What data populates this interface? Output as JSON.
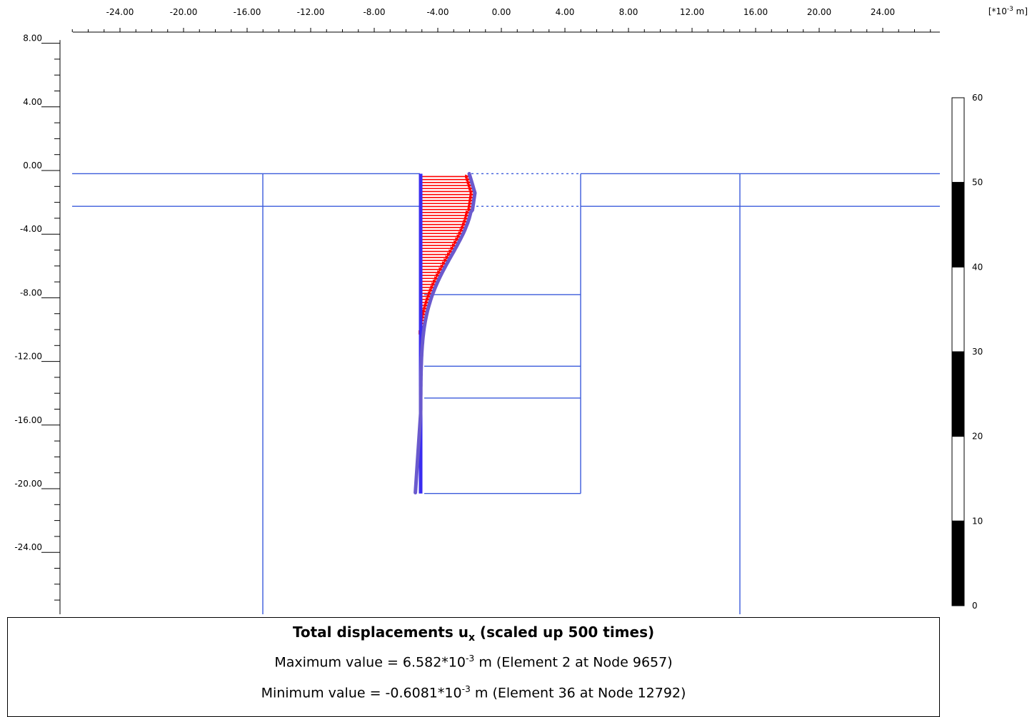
{
  "unit_label": {
    "prefix": "[*10",
    "exponent": "-3",
    "suffix": " m]"
  },
  "x_axis": {
    "ticks": [
      "-24.00",
      "-20.00",
      "-16.00",
      "-12.00",
      "-8.00",
      "-4.00",
      "0.00",
      "4.00",
      "8.00",
      "12.00",
      "16.00",
      "20.00",
      "24.00"
    ],
    "values": [
      -24,
      -20,
      -16,
      -12,
      -8,
      -4,
      0,
      4,
      8,
      12,
      16,
      20,
      24
    ],
    "range": [
      -27,
      28
    ]
  },
  "y_axis": {
    "ticks": [
      "8.00",
      "4.00",
      "0.00",
      "-4.00",
      "-8.00",
      "-12.00",
      "-16.00",
      "-20.00",
      "-24.00"
    ],
    "values": [
      8,
      4,
      0,
      -4,
      -8,
      -12,
      -16,
      -20,
      -24
    ],
    "range": [
      -28,
      9
    ]
  },
  "legend_scale": {
    "labels": [
      "60",
      "50",
      "40",
      "30",
      "20",
      "10",
      "0"
    ],
    "values": [
      60,
      50,
      40,
      30,
      20,
      10,
      0
    ],
    "band_colors": [
      "#ffffff",
      "#000000",
      "#ffffff",
      "#000000",
      "#ffffff",
      "#000000"
    ]
  },
  "colors": {
    "geometry": "#3b5bdb",
    "arrows": "#ff0000",
    "wall": "#3a2cf0",
    "deformed": "#6a5acd"
  },
  "info": {
    "title_main": "Total displacements u",
    "title_sub": "x",
    "title_rest": " (scaled up 500 times)",
    "max_prefix": "Maximum value = 6.582*10",
    "max_exp": "-3",
    "max_rest": " m (Element 2 at Node 9657)",
    "min_prefix": "Minimum value = -0.6081*10",
    "min_exp": "-3",
    "min_rest": " m (Element 36 at Node 12792)"
  }
}
